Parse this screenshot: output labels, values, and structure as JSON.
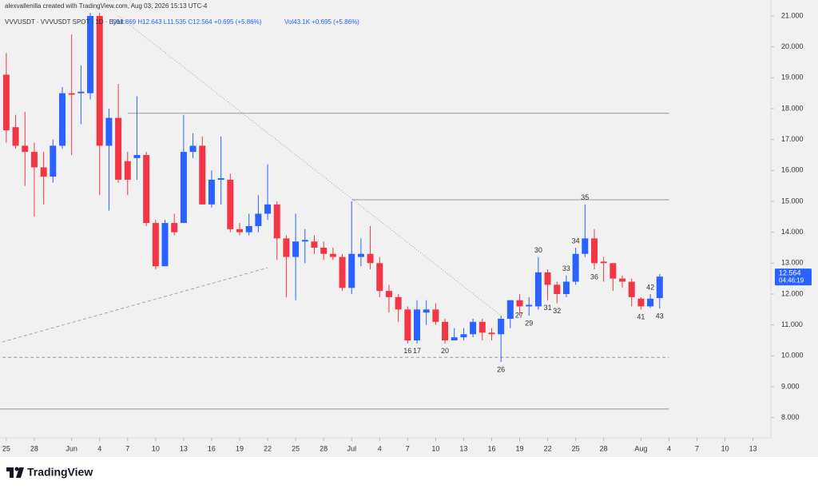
{
  "header": {
    "credit": "alexvallenilla created with TradingView.com, Aug 03, 2026 15:13 UTC-4",
    "symbol": "VVVUSDT · VVVUSDT SPOT · 1D · Bybit",
    "ohlc": "O11.869 H12.643 L11.535 C12.564 +0.695 (+5.86%)",
    "volume": "Vol43.1K +0.695 (+5.86%)"
  },
  "footer": {
    "brand": "TradingView"
  },
  "chart_data": {
    "type": "candlestick",
    "up_color": "#2962ff",
    "down_color": "#f23645",
    "x": [
      "2026-05-25",
      "2026-05-26",
      "2026-05-27",
      "2026-05-28",
      "2026-05-29",
      "2026-05-30",
      "2026-05-31",
      "2026-06-01",
      "2026-06-02",
      "2026-06-03",
      "2026-06-04",
      "2026-06-05",
      "2026-06-06",
      "2026-06-07",
      "2026-06-08",
      "2026-06-09",
      "2026-06-10",
      "2026-06-11",
      "2026-06-12",
      "2026-06-13",
      "2026-06-14",
      "2026-06-15",
      "2026-06-16",
      "2026-06-17",
      "2026-06-18",
      "2026-06-19",
      "2026-06-20",
      "2026-06-21",
      "2026-06-22",
      "2026-06-23",
      "2026-06-24",
      "2026-06-25",
      "2026-06-26",
      "2026-06-27",
      "2026-06-28",
      "2026-06-29",
      "2026-06-30",
      "2026-07-01",
      "2026-07-02",
      "2026-07-03",
      "2026-07-04",
      "2026-07-05",
      "2026-07-06",
      "2026-07-07",
      "2026-07-08",
      "2026-07-09",
      "2026-07-10",
      "2026-07-11",
      "2026-07-12",
      "2026-07-13",
      "2026-07-14",
      "2026-07-15",
      "2026-07-16",
      "2026-07-17",
      "2026-07-18",
      "2026-07-19",
      "2026-07-20",
      "2026-07-21",
      "2026-07-22",
      "2026-07-23",
      "2026-07-24",
      "2026-07-25",
      "2026-07-26",
      "2026-07-27",
      "2026-07-28",
      "2026-07-29",
      "2026-07-30",
      "2026-07-31",
      "2026-08-01",
      "2026-08-02",
      "2026-08-03"
    ],
    "open": [
      19.1,
      17.4,
      16.8,
      16.6,
      16.1,
      15.8,
      16.8,
      18.5,
      18.5,
      18.5,
      21.0,
      16.8,
      17.7,
      16.3,
      16.4,
      16.5,
      14.3,
      12.9,
      14.3,
      14.3,
      16.6,
      16.8,
      14.9,
      15.7,
      15.7,
      14.1,
      14.0,
      14.2,
      14.6,
      14.9,
      13.8,
      13.2,
      13.7,
      13.7,
      13.5,
      13.3,
      13.2,
      12.2,
      13.2,
      13.3,
      13.0,
      12.1,
      11.9,
      11.5,
      10.5,
      11.4,
      11.5,
      11.1,
      10.5,
      10.6,
      10.7,
      11.1,
      10.75,
      10.7,
      11.2,
      11.8,
      11.6,
      11.6,
      12.7,
      12.3,
      12.0,
      12.4,
      13.3,
      13.8,
      13.05,
      13.0,
      12.5,
      12.4,
      11.85,
      11.6,
      11.869
    ],
    "high": [
      19.8,
      17.8,
      17.9,
      16.9,
      16.6,
      17.0,
      18.7,
      20.4,
      19.4,
      21.1,
      21.1,
      18.0,
      18.8,
      16.6,
      18.4,
      16.6,
      14.4,
      14.4,
      14.6,
      17.8,
      17.2,
      17.1,
      16.0,
      17.1,
      15.9,
      14.3,
      14.6,
      15.2,
      16.2,
      15.0,
      13.9,
      14.6,
      14.1,
      13.9,
      13.7,
      13.5,
      13.3,
      15.0,
      13.8,
      14.2,
      13.2,
      12.3,
      12.0,
      11.6,
      11.8,
      11.8,
      11.7,
      11.2,
      10.9,
      10.9,
      11.2,
      11.2,
      10.9,
      11.3,
      11.8,
      12.0,
      11.9,
      13.2,
      12.8,
      12.4,
      12.6,
      13.5,
      14.9,
      14.1,
      13.2,
      13.0,
      12.6,
      12.5,
      11.9,
      12.0,
      12.643
    ],
    "low": [
      16.9,
      16.7,
      15.5,
      14.5,
      14.9,
      15.6,
      16.7,
      16.5,
      17.5,
      18.3,
      15.2,
      14.7,
      15.6,
      15.2,
      15.7,
      14.2,
      12.8,
      12.9,
      13.9,
      14.3,
      16.4,
      14.9,
      14.8,
      14.9,
      14.0,
      13.9,
      13.9,
      14.0,
      14.4,
      13.1,
      11.9,
      11.8,
      13.0,
      13.3,
      13.1,
      13.1,
      12.1,
      12.0,
      12.9,
      12.8,
      11.9,
      11.4,
      11.1,
      10.4,
      10.4,
      11.0,
      11.0,
      10.4,
      10.5,
      10.5,
      10.6,
      10.5,
      10.5,
      9.8,
      10.9,
      11.3,
      11.3,
      11.5,
      11.8,
      11.7,
      11.9,
      12.3,
      13.2,
      12.8,
      12.4,
      12.1,
      12.2,
      11.6,
      11.5,
      11.55,
      11.535
    ],
    "close": [
      17.3,
      16.8,
      16.6,
      16.1,
      15.8,
      16.8,
      18.5,
      18.45,
      18.55,
      21.0,
      16.8,
      17.7,
      15.7,
      15.7,
      16.5,
      14.3,
      12.9,
      14.3,
      14.0,
      16.6,
      16.8,
      14.9,
      15.7,
      15.75,
      14.1,
      14.0,
      14.2,
      14.6,
      14.9,
      13.8,
      13.2,
      13.7,
      13.75,
      13.5,
      13.3,
      13.2,
      12.2,
      13.3,
      13.3,
      13.0,
      12.1,
      11.9,
      11.5,
      10.5,
      11.5,
      11.5,
      11.1,
      10.5,
      10.6,
      10.7,
      11.1,
      10.75,
      10.7,
      11.2,
      11.8,
      11.6,
      11.65,
      12.7,
      12.3,
      12.0,
      12.4,
      13.3,
      13.8,
      13.0,
      13.0,
      12.5,
      12.4,
      11.9,
      11.6,
      11.85,
      12.564
    ],
    "countdown": "04:46:19",
    "xlim": [
      "2026-05-24",
      "2026-08-15"
    ],
    "ylim": [
      7.5,
      21.5
    ],
    "yticks": [
      {
        "value": 8,
        "label": "8.000"
      },
      {
        "value": 9,
        "label": "9.000"
      },
      {
        "value": 10,
        "label": "10.000"
      },
      {
        "value": 11,
        "label": "11.000"
      },
      {
        "value": 12,
        "label": "12.000"
      },
      {
        "value": 13,
        "label": "13.000"
      },
      {
        "value": 14,
        "label": "14.000"
      },
      {
        "value": 15,
        "label": "15.000"
      },
      {
        "value": 16,
        "label": "16.000"
      },
      {
        "value": 17,
        "label": "17.000"
      },
      {
        "value": 18,
        "label": "18.000"
      },
      {
        "value": 19,
        "label": "19.000"
      },
      {
        "value": 20,
        "label": "20.000"
      },
      {
        "value": 21,
        "label": "21.000"
      }
    ],
    "xticks": [
      {
        "value": "2026-05-25",
        "label": "25"
      },
      {
        "value": "2026-05-28",
        "label": "28"
      },
      {
        "value": "2026-06-01",
        "label": "Jun"
      },
      {
        "value": "2026-06-04",
        "label": "4"
      },
      {
        "value": "2026-06-07",
        "label": "7"
      },
      {
        "value": "2026-06-10",
        "label": "10"
      },
      {
        "value": "2026-06-13",
        "label": "13"
      },
      {
        "value": "2026-06-16",
        "label": "16"
      },
      {
        "value": "2026-06-19",
        "label": "19"
      },
      {
        "value": "2026-06-22",
        "label": "22"
      },
      {
        "value": "2026-06-25",
        "label": "25"
      },
      {
        "value": "2026-06-28",
        "label": "28"
      },
      {
        "value": "2026-07-01",
        "label": "Jul"
      },
      {
        "value": "2026-07-04",
        "label": "4"
      },
      {
        "value": "2026-07-07",
        "label": "7"
      },
      {
        "value": "2026-07-10",
        "label": "10"
      },
      {
        "value": "2026-07-13",
        "label": "13"
      },
      {
        "value": "2026-07-16",
        "label": "16"
      },
      {
        "value": "2026-07-19",
        "label": "19"
      },
      {
        "value": "2026-07-22",
        "label": "22"
      },
      {
        "value": "2026-07-25",
        "label": "25"
      },
      {
        "value": "2026-07-28",
        "label": "28"
      },
      {
        "value": "2026-08-01",
        "label": "Aug"
      },
      {
        "value": "2026-08-04",
        "label": "4"
      },
      {
        "value": "2026-08-07",
        "label": "7"
      },
      {
        "value": "2026-08-10",
        "label": "10"
      },
      {
        "value": "2026-08-13",
        "label": "13"
      }
    ],
    "levels": [
      {
        "value": 17.85,
        "from": "2026-06-07",
        "to": "2026-08-04",
        "style": "solid"
      },
      {
        "value": 15.05,
        "from": "2026-07-01",
        "to": "2026-08-04",
        "style": "solid"
      },
      {
        "value": 9.95,
        "from": "2026-05-24",
        "to": "2026-08-04",
        "style": "dashed"
      },
      {
        "value": 8.28,
        "from": "2026-05-24",
        "to": "2026-08-04",
        "style": "solid"
      }
    ],
    "trendlines": [
      {
        "from": [
          "2026-06-06",
          21.0
        ],
        "to": [
          "2026-07-17",
          11.3
        ],
        "style": "dotted"
      },
      {
        "from": [
          "2026-05-24",
          10.4
        ],
        "to": [
          "2026-06-22",
          12.85
        ],
        "style": "dashed"
      }
    ],
    "annotations": [
      {
        "x": "2026-07-07",
        "text": "16",
        "position": "below"
      },
      {
        "x": "2026-07-08",
        "text": "17",
        "position": "below"
      },
      {
        "x": "2026-07-11",
        "text": "20",
        "position": "below"
      },
      {
        "x": "2026-07-17",
        "text": "26",
        "position": "below"
      },
      {
        "x": "2026-07-18",
        "text": "27",
        "position": "right"
      },
      {
        "x": "2026-07-20",
        "text": "29",
        "position": "below"
      },
      {
        "x": "2026-07-21",
        "text": "30",
        "position": "above"
      },
      {
        "x": "2026-07-22",
        "text": "31",
        "position": "below"
      },
      {
        "x": "2026-07-23",
        "text": "32",
        "position": "below"
      },
      {
        "x": "2026-07-24",
        "text": "33",
        "position": "above"
      },
      {
        "x": "2026-07-25",
        "text": "34",
        "position": "above"
      },
      {
        "x": "2026-07-26",
        "text": "35",
        "position": "above"
      },
      {
        "x": "2026-07-27",
        "text": "36",
        "position": "below"
      },
      {
        "x": "2026-08-01",
        "text": "41",
        "position": "below"
      },
      {
        "x": "2026-08-02",
        "text": "42",
        "position": "above"
      },
      {
        "x": "2026-08-03",
        "text": "43",
        "position": "below"
      }
    ]
  }
}
